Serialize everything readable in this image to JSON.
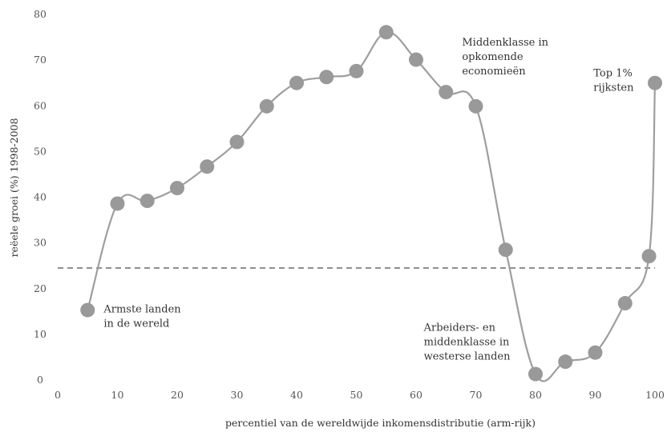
{
  "chart_data": {
    "type": "line",
    "xlabel": "percentiel van de wereldwijde inkomensdistributie (arm-rijk)",
    "ylabel": "reëele groei (%) 1998-2008",
    "xlim": [
      0,
      100
    ],
    "ylim": [
      0,
      80
    ],
    "x_ticks": [
      "0",
      "10",
      "20",
      "30",
      "40",
      "50",
      "60",
      "70",
      "80",
      "90",
      "100"
    ],
    "y_ticks": [
      "0",
      "10",
      "20",
      "30",
      "40",
      "50",
      "60",
      "70",
      "80"
    ],
    "reference_line": {
      "y": 24.5,
      "style": "dashed"
    },
    "grid": false,
    "series": [
      {
        "x": [
          5,
          10,
          15,
          20,
          25,
          30,
          35,
          40,
          45,
          50,
          55,
          60,
          65,
          70,
          75,
          80,
          85,
          90,
          95,
          99,
          100
        ],
        "y": [
          15.3,
          38.6,
          39.2,
          42,
          46.7,
          52.1,
          59.9,
          65,
          66.3,
          67.6,
          76.1,
          70.1,
          63,
          59.9,
          28.5,
          1.3,
          4,
          6,
          16.8,
          27.1,
          65
        ],
        "color": "#9e9e9e",
        "marker_color": "#999999"
      }
    ],
    "annotations": [
      {
        "lines": [
          "Armste landen",
          "in de wereld"
        ],
        "x": 7.7,
        "y": 14.8
      },
      {
        "lines": [
          "Middenklasse in",
          "opkomende",
          "economieën"
        ],
        "x": 67.7,
        "y": 73.2
      },
      {
        "lines": [
          "Top 1%",
          "rijksten"
        ],
        "x": 89.7,
        "y": 66.4
      },
      {
        "lines": [
          "Arbeiders- en",
          "middenklasse in",
          "westerse landen"
        ],
        "x": 61.3,
        "y": 10.8
      }
    ]
  }
}
